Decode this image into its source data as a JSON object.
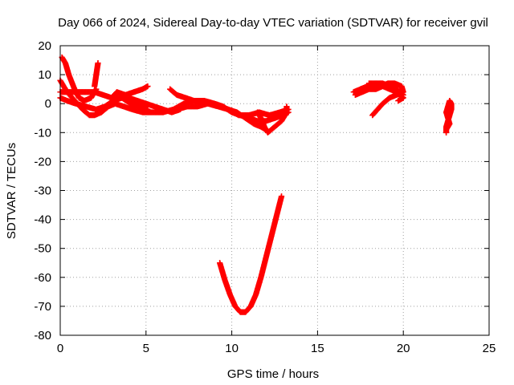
{
  "chart_data": {
    "type": "scatter",
    "title": "Day 066 of 2024, Sidereal Day-to-day VTEC variation (SDTVAR) for receiver gvil",
    "xlabel": "GPS time / hours",
    "ylabel": "SDTVAR / TECUs",
    "xlim": [
      0,
      25
    ],
    "ylim": [
      -80,
      20
    ],
    "x_ticks": [
      0,
      5,
      10,
      15,
      20,
      25
    ],
    "y_ticks": [
      20,
      10,
      0,
      -10,
      -20,
      -30,
      -40,
      -50,
      -60,
      -70,
      -80
    ],
    "grid": true,
    "legend": "none",
    "marker": "plus",
    "color": "#ff0000",
    "tracks": [
      [
        [
          0.0,
          8
        ],
        [
          0.2,
          6
        ],
        [
          0.4,
          4
        ],
        [
          0.7,
          2
        ],
        [
          1.0,
          0
        ],
        [
          1.3,
          -2
        ],
        [
          1.7,
          -4
        ],
        [
          2.0,
          -4
        ],
        [
          2.4,
          -3
        ],
        [
          2.8,
          -1
        ],
        [
          3.2,
          0
        ],
        [
          3.7,
          -1
        ],
        [
          4.2,
          -2
        ],
        [
          4.8,
          -3
        ],
        [
          5.4,
          -3
        ],
        [
          6.0,
          -3
        ],
        [
          6.6,
          -2
        ],
        [
          7.2,
          0
        ],
        [
          7.8,
          1
        ],
        [
          8.4,
          1
        ],
        [
          9.0,
          0
        ],
        [
          9.5,
          -1
        ],
        [
          10.0,
          -3
        ],
        [
          10.5,
          -4
        ],
        [
          11.0,
          -5
        ],
        [
          11.5,
          -6
        ],
        [
          12.0,
          -6
        ],
        [
          12.5,
          -5
        ],
        [
          13.0,
          -4
        ],
        [
          13.3,
          -3
        ]
      ],
      [
        [
          0.1,
          16
        ],
        [
          0.3,
          14
        ],
        [
          0.5,
          10
        ],
        [
          0.7,
          7
        ],
        [
          0.9,
          4
        ],
        [
          1.1,
          2
        ],
        [
          1.4,
          1
        ],
        [
          1.8,
          2
        ],
        [
          2.1,
          5
        ]
      ],
      [
        [
          0.0,
          4
        ],
        [
          0.5,
          4
        ],
        [
          1.0,
          4
        ],
        [
          1.5,
          4
        ],
        [
          2.0,
          4
        ],
        [
          2.5,
          3
        ],
        [
          3.0,
          2
        ],
        [
          3.5,
          2
        ],
        [
          4.0,
          2
        ],
        [
          4.5,
          1
        ],
        [
          5.0,
          0
        ],
        [
          5.5,
          -1
        ],
        [
          6.0,
          -2
        ],
        [
          6.5,
          -3
        ],
        [
          7.0,
          -2
        ]
      ],
      [
        [
          2.0,
          6
        ],
        [
          2.05,
          8
        ],
        [
          2.1,
          10
        ],
        [
          2.15,
          12
        ],
        [
          2.2,
          14
        ]
      ],
      [
        [
          3.0,
          2
        ],
        [
          3.3,
          4
        ],
        [
          3.8,
          3
        ],
        [
          4.3,
          4
        ],
        [
          4.8,
          5
        ],
        [
          5.1,
          6
        ]
      ],
      [
        [
          0.0,
          2
        ],
        [
          0.4,
          1
        ],
        [
          0.9,
          0
        ],
        [
          1.5,
          -1
        ],
        [
          2.1,
          -2
        ],
        [
          2.6,
          -1
        ],
        [
          3.1,
          1
        ],
        [
          3.6,
          2
        ],
        [
          4.1,
          0
        ],
        [
          4.6,
          -1
        ],
        [
          5.1,
          -2
        ]
      ],
      [
        [
          6.4,
          5
        ],
        [
          6.8,
          3
        ],
        [
          7.3,
          2
        ],
        [
          7.8,
          1
        ],
        [
          8.3,
          0
        ],
        [
          8.8,
          0
        ],
        [
          9.3,
          -1
        ],
        [
          9.8,
          -2
        ],
        [
          10.3,
          -3
        ],
        [
          10.8,
          -5
        ],
        [
          11.3,
          -7
        ],
        [
          11.7,
          -8
        ],
        [
          12.0,
          -9
        ]
      ],
      [
        [
          6.8,
          -2
        ],
        [
          7.4,
          -1
        ],
        [
          8.0,
          -1
        ],
        [
          8.6,
          0
        ],
        [
          9.2,
          -1
        ],
        [
          9.8,
          -2
        ],
        [
          10.4,
          -4
        ],
        [
          11.0,
          -4
        ],
        [
          11.6,
          -3
        ],
        [
          12.2,
          -4
        ],
        [
          12.8,
          -3
        ],
        [
          13.3,
          -2
        ]
      ],
      [
        [
          11.5,
          -3
        ],
        [
          11.7,
          -5
        ],
        [
          11.9,
          -8
        ],
        [
          12.1,
          -10
        ],
        [
          12.5,
          -8
        ],
        [
          12.9,
          -6
        ],
        [
          13.2,
          -3
        ],
        [
          13.2,
          -1
        ]
      ],
      [
        [
          9.3,
          -55
        ],
        [
          9.6,
          -61
        ],
        [
          9.9,
          -66
        ],
        [
          10.2,
          -70
        ],
        [
          10.5,
          -72
        ],
        [
          10.8,
          -72
        ],
        [
          11.1,
          -70
        ],
        [
          11.4,
          -66
        ],
        [
          11.7,
          -60
        ],
        [
          12.0,
          -53
        ],
        [
          12.3,
          -46
        ],
        [
          12.6,
          -39
        ],
        [
          12.9,
          -32
        ]
      ],
      [
        [
          17.1,
          4
        ],
        [
          17.5,
          5
        ],
        [
          17.9,
          6
        ],
        [
          18.3,
          6
        ],
        [
          18.7,
          6
        ],
        [
          19.1,
          7
        ],
        [
          19.5,
          7
        ],
        [
          19.9,
          6
        ],
        [
          20.0,
          4
        ],
        [
          19.6,
          3
        ],
        [
          19.2,
          2
        ],
        [
          18.8,
          0
        ],
        [
          18.5,
          -2
        ],
        [
          18.2,
          -4
        ]
      ],
      [
        [
          17.2,
          3
        ],
        [
          17.6,
          4
        ],
        [
          18.0,
          5
        ],
        [
          18.4,
          5
        ],
        [
          18.8,
          6
        ],
        [
          19.2,
          5
        ],
        [
          19.6,
          4
        ],
        [
          20.0,
          2
        ],
        [
          19.7,
          1
        ]
      ],
      [
        [
          18.0,
          7
        ],
        [
          18.4,
          7
        ],
        [
          18.8,
          7
        ],
        [
          19.2,
          6
        ],
        [
          19.6,
          5
        ],
        [
          20.0,
          3
        ]
      ],
      [
        [
          22.5,
          -10
        ],
        [
          22.5,
          -8
        ],
        [
          22.6,
          -6
        ],
        [
          22.7,
          -4
        ],
        [
          22.8,
          -2
        ],
        [
          22.8,
          0
        ],
        [
          22.7,
          1
        ],
        [
          22.6,
          -1
        ],
        [
          22.5,
          -3
        ],
        [
          22.6,
          -5
        ],
        [
          22.7,
          -7
        ],
        [
          22.5,
          -9
        ]
      ]
    ]
  }
}
